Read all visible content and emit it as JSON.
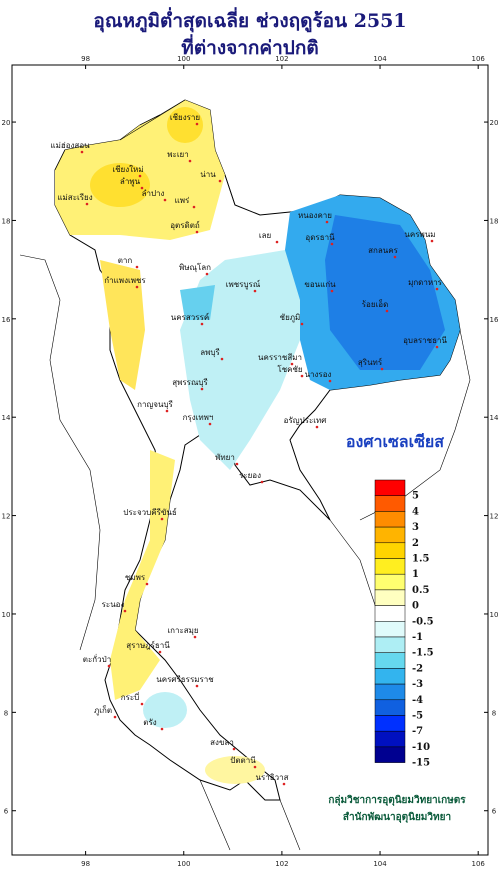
{
  "title": [
    "อุณหภูมิต่ำสุดเฉลี่ย ช่วงฤดูร้อน 2551",
    "ที่ต่างจากค่าปกติ"
  ],
  "lon_range": [
    96.5,
    106.2
  ],
  "lat_range": [
    5.1,
    21.16
  ],
  "lon_ticks": [
    98,
    100,
    102,
    104,
    106
  ],
  "lat_ticks": [
    6,
    8,
    10,
    12,
    14,
    16,
    18,
    20
  ],
  "unit": "องศาเซลเซียส",
  "legend": {
    "levels": [
      5,
      4,
      3,
      2,
      1.5,
      1,
      0.5,
      0,
      -0.5,
      -1,
      -1.5,
      -2,
      -3,
      -4,
      -5,
      -7,
      -10,
      -15
    ],
    "colors": [
      "#ff0000",
      "#ff5a00",
      "#ff8c00",
      "#ffb400",
      "#ffd400",
      "#ffee20",
      "#ffff70",
      "#ffffc0",
      "#ffffff",
      "#e0fbfb",
      "#aeeef4",
      "#66d8ee",
      "#33b4ee",
      "#1e8ae8",
      "#1060e0",
      "#0030ff",
      "#0010c0",
      "#000090"
    ]
  },
  "places": [
    "เชียงราย",
    "แม่ฮ่องสอน",
    "พะเยา",
    "น่าน",
    "เชียงใหม่",
    "ลำพูน",
    "ลำปาง",
    "แพร่",
    "แม่สะเรียง",
    "อุตรดิตถ์",
    "หนองคาย",
    "อุดรธานี",
    "นครพนม",
    "สกลนคร",
    "เลย",
    "ตาก",
    "พิษณุโลก",
    "มุกดาหาร",
    "กำแพงเพชร",
    "ขอนแก่น",
    "เพชรบูรณ์",
    "ร้อยเอ็ด",
    "นครสวรรค์",
    "ชัยภูมิ",
    "อุบลราชธานี",
    "ลพบุรี",
    "นครราชสีมา",
    "โชคชัย",
    "สุรินทร์",
    "นางรอง",
    "สุพรรณบุรี",
    "กาญจนบุรี",
    "กรุงเทพฯ",
    "อรัญประเทศ",
    "พัทยา",
    "ระยอง",
    "ประจวบคีรีขันธ์",
    "ชุมพร",
    "ระนอง",
    "เกาะสมุย",
    "สุราษฎร์ธานี",
    "ตะกั่วป่า",
    "นครศรีธรรมราช",
    "กระบี่",
    "ภูเก็ต",
    "ตรัง",
    "สงขลา",
    "ปัตตานี",
    "นราธิวาส"
  ],
  "credits": [
    "กลุ่มวิชาการอุตุนิยมวิทยาเกษตร",
    "สำนักพัฒนาอุตุนิยมวิทยา"
  ]
}
